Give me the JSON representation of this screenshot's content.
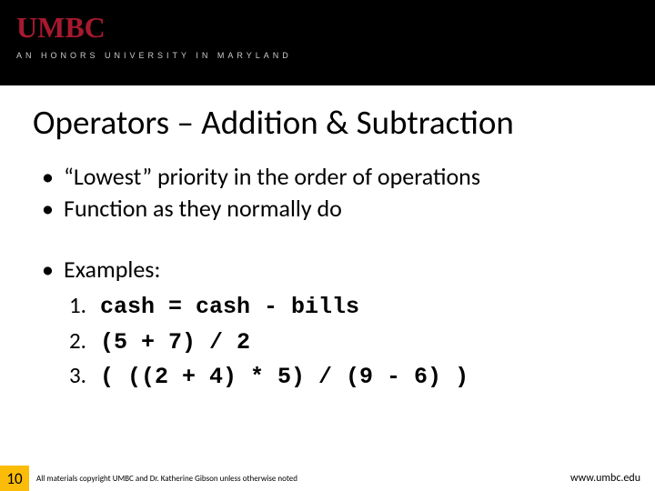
{
  "header": {
    "logo_main": "UMBC",
    "logo_tagline": "AN HONORS UNIVERSITY IN MARYLAND",
    "bg_color": "#000000",
    "logo_color": "#a71930",
    "tagline_color": "#cccccc"
  },
  "slide": {
    "title": "Operators – Addition & Subtraction",
    "title_fontsize": 37,
    "bullets": [
      "“Lowest” priority in the order of operations",
      "Function as they normally do"
    ],
    "examples_label": "Examples:",
    "examples": [
      {
        "num": "1.",
        "code": "cash = cash - bills"
      },
      {
        "num": "2.",
        "code": "(5 + 7) / 2"
      },
      {
        "num": "3.",
        "code": "( ((2 + 4) * 5) / (9 - 6) )"
      }
    ],
    "body_fontsize": 26,
    "code_font": "Courier New"
  },
  "footer": {
    "page_number": "10",
    "page_bg_color": "#fbbc09",
    "copyright": "All materials copyright UMBC and Dr. Katherine Gibson unless otherwise noted",
    "url": "www.umbc.edu"
  }
}
